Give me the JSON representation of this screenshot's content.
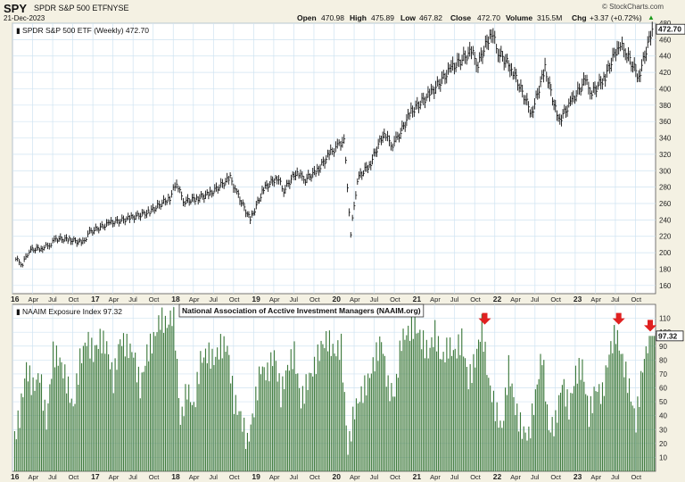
{
  "header": {
    "symbol": "SPY",
    "name": "SPDR S&P 500 ETF",
    "exchange": "NYSE",
    "date": "21-Dec-2023",
    "watermark": "© StockCharts.com",
    "open_label": "Open",
    "open": "470.98",
    "high_label": "High",
    "high": "475.89",
    "low_label": "Low",
    "low": "467.82",
    "close_label": "Close",
    "close": "472.70",
    "volume_label": "Volume",
    "volume": "315.5M",
    "chg_label": "Chg",
    "chg": "+3.37 (+0.72%)",
    "chg_arrow": "▲"
  },
  "colors": {
    "background": "#f4f1e3",
    "plot_bg": "#ffffff",
    "grid": "#cfe3f1",
    "price": "#111111",
    "bars": "#3e7a3c",
    "arrow": "#e02020",
    "up": "#1a9a1a"
  },
  "chart_data": [
    {
      "type": "line",
      "legend": "SPDR S&P 500 ETF (Weekly) 472.70",
      "last_value_label": "472.70",
      "ylim": [
        150,
        480
      ],
      "yticks": [
        160,
        180,
        200,
        220,
        240,
        260,
        280,
        300,
        320,
        340,
        360,
        380,
        400,
        420,
        440,
        460,
        480
      ],
      "x_tick_labels": [
        "16",
        "Apr",
        "Jul",
        "Oct",
        "17",
        "Apr",
        "Jul",
        "Oct",
        "18",
        "Apr",
        "Jul",
        "Oct",
        "19",
        "Apr",
        "Jul",
        "Oct",
        "20",
        "Apr",
        "Jul",
        "Oct",
        "21",
        "Apr",
        "Jul",
        "Oct",
        "22",
        "Apr",
        "Jul",
        "Oct",
        "23",
        "Apr",
        "Jul",
        "Oct"
      ],
      "x_start": "2016-01",
      "x_end": "2023-12",
      "series": [
        {
          "points": [
            [
              "2016-01",
              192
            ],
            [
              "2016-02",
              186
            ],
            [
              "2016-03",
              203
            ],
            [
              "2016-05",
              206
            ],
            [
              "2016-06",
              209
            ],
            [
              "2016-07",
              217
            ],
            [
              "2016-09",
              216
            ],
            [
              "2016-11",
              212
            ],
            [
              "2016-12",
              225
            ],
            [
              "2017-03",
              236
            ],
            [
              "2017-06",
              242
            ],
            [
              "2017-09",
              250
            ],
            [
              "2017-12",
              267
            ],
            [
              "2018-01",
              286
            ],
            [
              "2018-02",
              262
            ],
            [
              "2018-04",
              266
            ],
            [
              "2018-06",
              272
            ],
            [
              "2018-09",
              291
            ],
            [
              "2018-10",
              273
            ],
            [
              "2018-12",
              240
            ],
            [
              "2019-02",
              278
            ],
            [
              "2019-04",
              292
            ],
            [
              "2019-05",
              276
            ],
            [
              "2019-07",
              300
            ],
            [
              "2019-08",
              288
            ],
            [
              "2019-10",
              300
            ],
            [
              "2019-12",
              322
            ],
            [
              "2020-01",
              330
            ],
            [
              "2020-02",
              338
            ],
            [
              "2020-03",
              223
            ],
            [
              "2020-04",
              290
            ],
            [
              "2020-06",
              310
            ],
            [
              "2020-08",
              348
            ],
            [
              "2020-09",
              330
            ],
            [
              "2020-10",
              340
            ],
            [
              "2020-12",
              372
            ],
            [
              "2021-03",
              395
            ],
            [
              "2021-06",
              425
            ],
            [
              "2021-09",
              445
            ],
            [
              "2021-10",
              430
            ],
            [
              "2021-12",
              470
            ],
            [
              "2022-01",
              445
            ],
            [
              "2022-03",
              425
            ],
            [
              "2022-06",
              370
            ],
            [
              "2022-08",
              425
            ],
            [
              "2022-10",
              360
            ],
            [
              "2022-12",
              385
            ],
            [
              "2023-02",
              410
            ],
            [
              "2023-03",
              395
            ],
            [
              "2023-05",
              415
            ],
            [
              "2023-07",
              455
            ],
            [
              "2023-08",
              445
            ],
            [
              "2023-10",
              415
            ],
            [
              "2023-12",
              472.7
            ]
          ]
        }
      ]
    },
    {
      "type": "bar",
      "legend": "NAAIM Exposure Index 97.32",
      "annotation": "National Association of Acctive Investment Managers (NAAIM.org)",
      "last_value_label": "97.32",
      "ylim": [
        0,
        120
      ],
      "yticks": [
        10,
        20,
        30,
        40,
        50,
        60,
        70,
        80,
        90,
        100,
        110
      ],
      "x_tick_labels": [
        "16",
        "Apr",
        "Jul",
        "Oct",
        "17",
        "Apr",
        "Jul",
        "Oct",
        "18",
        "Apr",
        "Jul",
        "Oct",
        "19",
        "Apr",
        "Jul",
        "Oct",
        "20",
        "Apr",
        "Jul",
        "Oct",
        "21",
        "Apr",
        "Jul",
        "Oct",
        "22",
        "Apr",
        "Jul",
        "Oct",
        "23",
        "Apr",
        "Jul",
        "Oct"
      ],
      "x_start": "2016-01",
      "x_end": "2023-12",
      "arrows_at": [
        "2021-11",
        "2023-07",
        "2023-12"
      ],
      "series": [
        {
          "points": [
            [
              "2016-01",
              20
            ],
            [
              "2016-02",
              40
            ],
            [
              "2016-03",
              75
            ],
            [
              "2016-04",
              60
            ],
            [
              "2016-05",
              70
            ],
            [
              "2016-06",
              35
            ],
            [
              "2016-07",
              85
            ],
            [
              "2016-08",
              80
            ],
            [
              "2016-09",
              65
            ],
            [
              "2016-10",
              45
            ],
            [
              "2016-11",
              80
            ],
            [
              "2016-12",
              95
            ],
            [
              "2017-01",
              85
            ],
            [
              "2017-02",
              95
            ],
            [
              "2017-03",
              90
            ],
            [
              "2017-04",
              65
            ],
            [
              "2017-05",
              95
            ],
            [
              "2017-06",
              90
            ],
            [
              "2017-07",
              85
            ],
            [
              "2017-08",
              60
            ],
            [
              "2017-09",
              85
            ],
            [
              "2017-10",
              95
            ],
            [
              "2017-11",
              110
            ],
            [
              "2017-12",
              105
            ],
            [
              "2018-01",
              115
            ],
            [
              "2018-02",
              35
            ],
            [
              "2018-03",
              60
            ],
            [
              "2018-04",
              45
            ],
            [
              "2018-05",
              80
            ],
            [
              "2018-06",
              85
            ],
            [
              "2018-07",
              80
            ],
            [
              "2018-08",
              90
            ],
            [
              "2018-09",
              90
            ],
            [
              "2018-10",
              50
            ],
            [
              "2018-11",
              40
            ],
            [
              "2018-12",
              20
            ],
            [
              "2019-01",
              45
            ],
            [
              "2019-02",
              75
            ],
            [
              "2019-03",
              70
            ],
            [
              "2019-04",
              85
            ],
            [
              "2019-05",
              55
            ],
            [
              "2019-06",
              75
            ],
            [
              "2019-07",
              85
            ],
            [
              "2019-08",
              50
            ],
            [
              "2019-09",
              65
            ],
            [
              "2019-10",
              75
            ],
            [
              "2019-11",
              90
            ],
            [
              "2019-12",
              95
            ],
            [
              "2020-01",
              85
            ],
            [
              "2020-02",
              90
            ],
            [
              "2020-03",
              15
            ],
            [
              "2020-04",
              45
            ],
            [
              "2020-05",
              55
            ],
            [
              "2020-06",
              65
            ],
            [
              "2020-07",
              80
            ],
            [
              "2020-08",
              95
            ],
            [
              "2020-09",
              60
            ],
            [
              "2020-10",
              55
            ],
            [
              "2020-11",
              95
            ],
            [
              "2020-12",
              100
            ],
            [
              "2021-01",
              105
            ],
            [
              "2021-02",
              95
            ],
            [
              "2021-03",
              85
            ],
            [
              "2021-04",
              100
            ],
            [
              "2021-05",
              80
            ],
            [
              "2021-06",
              90
            ],
            [
              "2021-07",
              85
            ],
            [
              "2021-08",
              95
            ],
            [
              "2021-09",
              65
            ],
            [
              "2021-10",
              80
            ],
            [
              "2021-11",
              105
            ],
            [
              "2021-12",
              65
            ],
            [
              "2022-01",
              45
            ],
            [
              "2022-02",
              30
            ],
            [
              "2022-03",
              75
            ],
            [
              "2022-04",
              45
            ],
            [
              "2022-05",
              30
            ],
            [
              "2022-06",
              25
            ],
            [
              "2022-07",
              55
            ],
            [
              "2022-08",
              85
            ],
            [
              "2022-09",
              30
            ],
            [
              "2022-10",
              35
            ],
            [
              "2022-11",
              65
            ],
            [
              "2022-12",
              45
            ],
            [
              "2023-01",
              70
            ],
            [
              "2023-02",
              75
            ],
            [
              "2023-03",
              40
            ],
            [
              "2023-04",
              60
            ],
            [
              "2023-05",
              55
            ],
            [
              "2023-06",
              85
            ],
            [
              "2023-07",
              100
            ],
            [
              "2023-08",
              80
            ],
            [
              "2023-09",
              60
            ],
            [
              "2023-10",
              35
            ],
            [
              "2023-11",
              75
            ],
            [
              "2023-12",
              97.32
            ]
          ]
        }
      ]
    }
  ]
}
